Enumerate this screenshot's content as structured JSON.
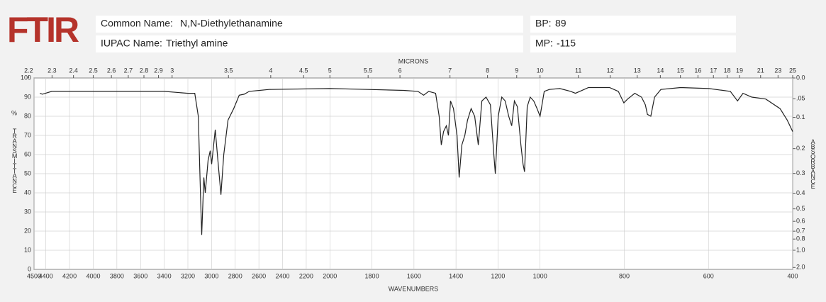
{
  "header": {
    "logo": "FTIR",
    "common_name_label": "Common Name:",
    "common_name": "N,N-Diethylethanamine",
    "iupac_name_label": "IUPAC Name:",
    "iupac_name": "Triethyl amine",
    "bp_label": "BP:",
    "bp": 89,
    "mp_label": "MP:",
    "mp": -115
  },
  "chart_data": {
    "type": "line",
    "x_label": "WAVENUMBERS",
    "x2_label": "MICRONS",
    "y_label": "TRANSMITTANCE",
    "y_unit": "%",
    "y2_label": "ABSORBANCE",
    "x": [
      4450,
      4430,
      4350,
      4000,
      3600,
      3400,
      3200,
      3142,
      3112,
      3094,
      3083,
      3065,
      3053,
      3029,
      3011,
      2999,
      2969,
      2951,
      2921,
      2897,
      2861,
      2813,
      2766,
      2724,
      2682,
      2514,
      2000,
      1818,
      1649,
      1581,
      1554,
      1530,
      1497,
      1480,
      1470,
      1459,
      1446,
      1436,
      1426,
      1412,
      1395,
      1385,
      1372,
      1358,
      1345,
      1328,
      1311,
      1294,
      1277,
      1257,
      1236,
      1220,
      1213,
      1199,
      1182,
      1166,
      1149,
      1135,
      1122,
      1108,
      1091,
      1081,
      1074,
      1061,
      1047,
      1030,
      1014,
      1000,
      990,
      978,
      953,
      927,
      916,
      885,
      835,
      814,
      801,
      792,
      775,
      759,
      750,
      745,
      737,
      728,
      713,
      666,
      599,
      548,
      531,
      518,
      497,
      464,
      430,
      413,
      400
    ],
    "series": [
      {
        "color": "#222222",
        "values": [
          92,
          91.5,
          93,
          93,
          93,
          93,
          92,
          92,
          80,
          40,
          18,
          48,
          40,
          57,
          62,
          55,
          73,
          60,
          39,
          60,
          78,
          84,
          91,
          91.5,
          93,
          94,
          94.5,
          94,
          93.5,
          93,
          91,
          93,
          92,
          80,
          65,
          72,
          75,
          70,
          88,
          84,
          70,
          48,
          65,
          70,
          78,
          84,
          80,
          65,
          88,
          90,
          86,
          60,
          50,
          80,
          90,
          88,
          80,
          75,
          88,
          85,
          65,
          55,
          51,
          85,
          90,
          88,
          84,
          80,
          93,
          94,
          94.5,
          93,
          92,
          95,
          95,
          93,
          87,
          89,
          92,
          90,
          86,
          81,
          80,
          90,
          94,
          95,
          94.5,
          93,
          88,
          92,
          90,
          89,
          84,
          78,
          72
        ]
      }
    ],
    "xlim": [
      4500,
      400
    ],
    "x_breaks": [
      2000,
      1000
    ],
    "xticks": [
      4500,
      4400,
      4200,
      4000,
      3800,
      3600,
      3400,
      3200,
      3000,
      2800,
      2600,
      2400,
      2200,
      2000,
      1800,
      1600,
      1400,
      1200,
      1000,
      800,
      600,
      400
    ],
    "x2ticks": [
      2.2,
      2.3,
      2.4,
      2.5,
      2.6,
      2.7,
      2.8,
      2.9,
      3,
      3.5,
      4,
      4.5,
      5,
      5.5,
      6,
      7,
      8,
      9,
      10,
      11,
      12,
      13,
      14,
      15,
      16,
      17,
      18,
      19,
      21,
      23,
      25
    ],
    "ylim": [
      0,
      100
    ],
    "yticks": [
      0,
      10,
      20,
      30,
      40,
      50,
      60,
      70,
      80,
      90,
      100
    ],
    "y2ticks": [
      {
        "value": 0,
        "label": "0.0"
      },
      {
        "value": 0.05,
        "label": ".05"
      },
      0.1,
      0.2,
      0.3,
      0.4,
      0.5,
      0.6,
      0.7,
      0.8,
      {
        "value": 1,
        "label": "1.0"
      },
      {
        "value": 2,
        "label": "2.0"
      }
    ],
    "grid": true
  }
}
